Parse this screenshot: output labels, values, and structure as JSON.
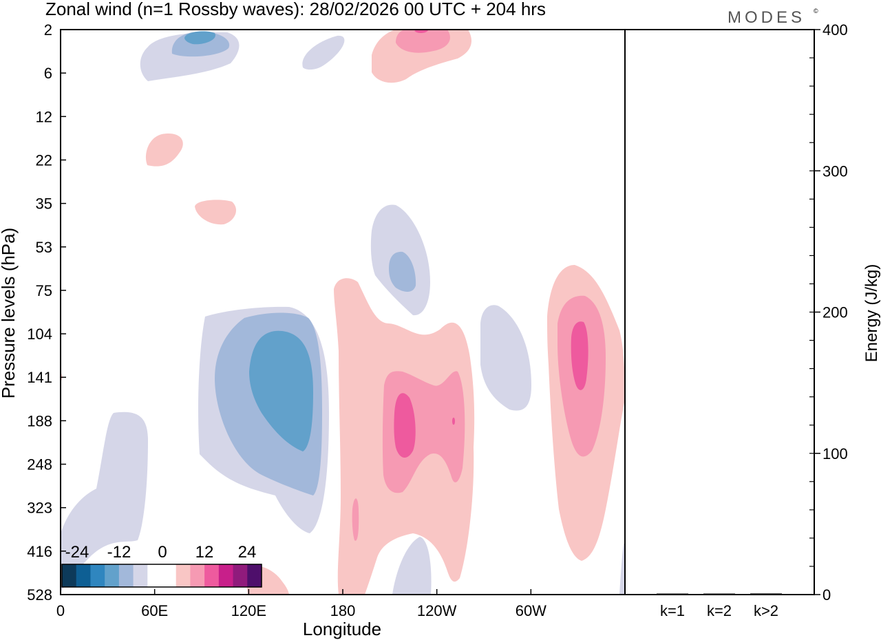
{
  "chart_data": {
    "type": "heatmap",
    "title": "Zonal wind (n=1 Rossby waves):  28/02/2026  00 UTC  + 204 hrs",
    "brand": "MODES",
    "brand_mark": "©",
    "xlabel": "Longitude",
    "ylabel": "Pressure levels (hPa)",
    "x_ticks": [
      {
        "label": "0",
        "lon": 0
      },
      {
        "label": "60E",
        "lon": 60
      },
      {
        "label": "120E",
        "lon": 120
      },
      {
        "label": "180",
        "lon": 180
      },
      {
        "label": "120W",
        "lon": 240
      },
      {
        "label": "60W",
        "lon": 300
      }
    ],
    "xlim": [
      0,
      360
    ],
    "y_ticks": [
      "2",
      "6",
      "12",
      "22",
      "35",
      "53",
      "75",
      "104",
      "141",
      "188",
      "248",
      "323",
      "416",
      "528"
    ],
    "contour_levels": [
      -24,
      -20,
      -16,
      -12,
      -8,
      -4,
      4,
      8,
      12,
      16,
      20,
      24
    ],
    "colorbar": {
      "tick_labels": [
        "-24",
        "-12",
        "0",
        "12",
        "24"
      ],
      "colors": [
        "#0d3a5a",
        "#0e5f94",
        "#2f86bf",
        "#62a1cb",
        "#a2b8da",
        "#d5d6e8",
        "#ffffff",
        "#ffffff",
        "#f9c6c5",
        "#f69ab3",
        "#ee5a9e",
        "#c81f8a",
        "#901b7c",
        "#4e0f6b"
      ]
    },
    "features": [
      {
        "sign": "negative",
        "lon": 88,
        "level": "2",
        "peak": -12
      },
      {
        "sign": "negative",
        "lon": 133,
        "level": "141",
        "peak": -12
      },
      {
        "sign": "negative",
        "lon": 212,
        "level": "63",
        "peak": -8
      },
      {
        "sign": "negative",
        "lon": 283,
        "level": "141",
        "peak": -4
      },
      {
        "sign": "negative",
        "lon": 38,
        "level": "248",
        "peak": -4
      },
      {
        "sign": "positive",
        "lon": 228,
        "level": "2",
        "peak": 12
      },
      {
        "sign": "positive",
        "lon": 66,
        "level": "16",
        "peak": 4
      },
      {
        "sign": "positive",
        "lon": 226,
        "level": "188",
        "peak": 12
      },
      {
        "sign": "positive",
        "lon": 330,
        "level": "120",
        "peak": 12
      },
      {
        "sign": "positive",
        "lon": 188,
        "level": "323",
        "peak": 8
      }
    ],
    "energy": {
      "ylabel": "Energy (J/kg)",
      "ylim": [
        0,
        400
      ],
      "y_ticks": [
        "0",
        "100",
        "200",
        "300",
        "400"
      ],
      "categories": [
        "k=1",
        "k=2",
        "k>2"
      ],
      "values": [
        0.5,
        0.5,
        0.8
      ]
    }
  }
}
